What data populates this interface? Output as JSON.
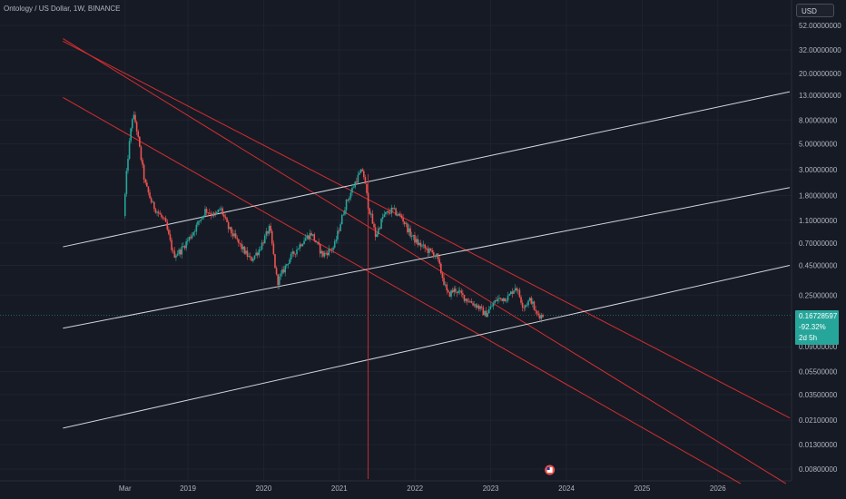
{
  "header": {
    "title": "Ontology / US Dollar, 1W, BINANCE",
    "currency_button": "USD"
  },
  "price_badge": {
    "price": "0.16728597",
    "change": "-92.32%",
    "countdown": "2d 5h"
  },
  "colors": {
    "background": "#161a25",
    "up": "#26a69a",
    "down": "#ef5350",
    "channel_red": "#d32f2f",
    "channel_white": "#d1d4dc"
  },
  "chart_data": {
    "type": "candlestick",
    "scale": "log",
    "y_ticks": [
      "52.00000000",
      "32.00000000",
      "20.00000000",
      "13.00000000",
      "8.00000000",
      "5.00000000",
      "3.00000000",
      "1.80000000",
      "1.10000000",
      "0.70000000",
      "0.45000000",
      "0.25000000",
      "0.09000000",
      "0.05500000",
      "0.03500000",
      "0.02100000",
      "0.01300000",
      "0.00800000"
    ],
    "y_tick_values": [
      52,
      32,
      20,
      13,
      8,
      5,
      3,
      1.8,
      1.1,
      0.7,
      0.45,
      0.25,
      0.09,
      0.055,
      0.035,
      0.021,
      0.013,
      0.008
    ],
    "x_ticks": [
      "Mar",
      "2019",
      "2020",
      "2021",
      "2022",
      "2023",
      "2024",
      "2025",
      "2026"
    ],
    "x_tick_years": [
      2018.17,
      2019.0,
      2020.0,
      2021.0,
      2022.0,
      2023.0,
      2024.0,
      2025.0,
      2026.0
    ],
    "last_price": 0.16728597,
    "change_percent": -92.32,
    "price_anchors": [
      [
        2018.17,
        1.2
      ],
      [
        2018.22,
        3.5
      ],
      [
        2018.29,
        9.0
      ],
      [
        2018.33,
        7.5
      ],
      [
        2018.45,
        2.3
      ],
      [
        2018.55,
        1.5
      ],
      [
        2018.72,
        1.05
      ],
      [
        2018.83,
        0.55
      ],
      [
        2018.92,
        0.6
      ],
      [
        2019.08,
        0.85
      ],
      [
        2019.25,
        1.35
      ],
      [
        2019.38,
        1.2
      ],
      [
        2019.45,
        1.4
      ],
      [
        2019.55,
        0.95
      ],
      [
        2019.72,
        0.65
      ],
      [
        2019.85,
        0.5
      ],
      [
        2019.95,
        0.6
      ],
      [
        2020.1,
        0.95
      ],
      [
        2020.2,
        0.32
      ],
      [
        2020.35,
        0.5
      ],
      [
        2020.55,
        0.75
      ],
      [
        2020.65,
        0.85
      ],
      [
        2020.8,
        0.55
      ],
      [
        2020.95,
        0.65
      ],
      [
        2021.1,
        1.5
      ],
      [
        2021.25,
        2.5
      ],
      [
        2021.33,
        3.0
      ],
      [
        2021.4,
        1.5
      ],
      [
        2021.5,
        0.8
      ],
      [
        2021.6,
        1.2
      ],
      [
        2021.72,
        1.35
      ],
      [
        2021.85,
        1.15
      ],
      [
        2021.95,
        0.85
      ],
      [
        2022.05,
        0.7
      ],
      [
        2022.2,
        0.6
      ],
      [
        2022.3,
        0.55
      ],
      [
        2022.45,
        0.25
      ],
      [
        2022.55,
        0.28
      ],
      [
        2022.7,
        0.23
      ],
      [
        2022.85,
        0.2
      ],
      [
        2022.95,
        0.17
      ],
      [
        2023.1,
        0.23
      ],
      [
        2023.25,
        0.24
      ],
      [
        2023.35,
        0.3
      ],
      [
        2023.45,
        0.2
      ],
      [
        2023.55,
        0.23
      ],
      [
        2023.62,
        0.17
      ],
      [
        2023.7,
        0.1672
      ]
    ],
    "trendlines": {
      "descending_red": [
        [
          [
            2017.35,
            40
          ],
          [
            2026.9,
            0.006
          ]
        ],
        [
          [
            2017.35,
            12.5
          ],
          [
            2026.3,
            0.006
          ]
        ],
        [
          [
            2017.35,
            38
          ],
          [
            2026.95,
            0.022
          ]
        ]
      ],
      "ascending_white": [
        [
          [
            2017.35,
            0.65
          ],
          [
            2026.95,
            14
          ]
        ],
        [
          [
            2017.35,
            0.13
          ],
          [
            2026.95,
            2.1
          ]
        ],
        [
          [
            2017.35,
            0.018
          ],
          [
            2026.95,
            0.45
          ]
        ]
      ],
      "vertical_red_year": 2021.38
    }
  }
}
